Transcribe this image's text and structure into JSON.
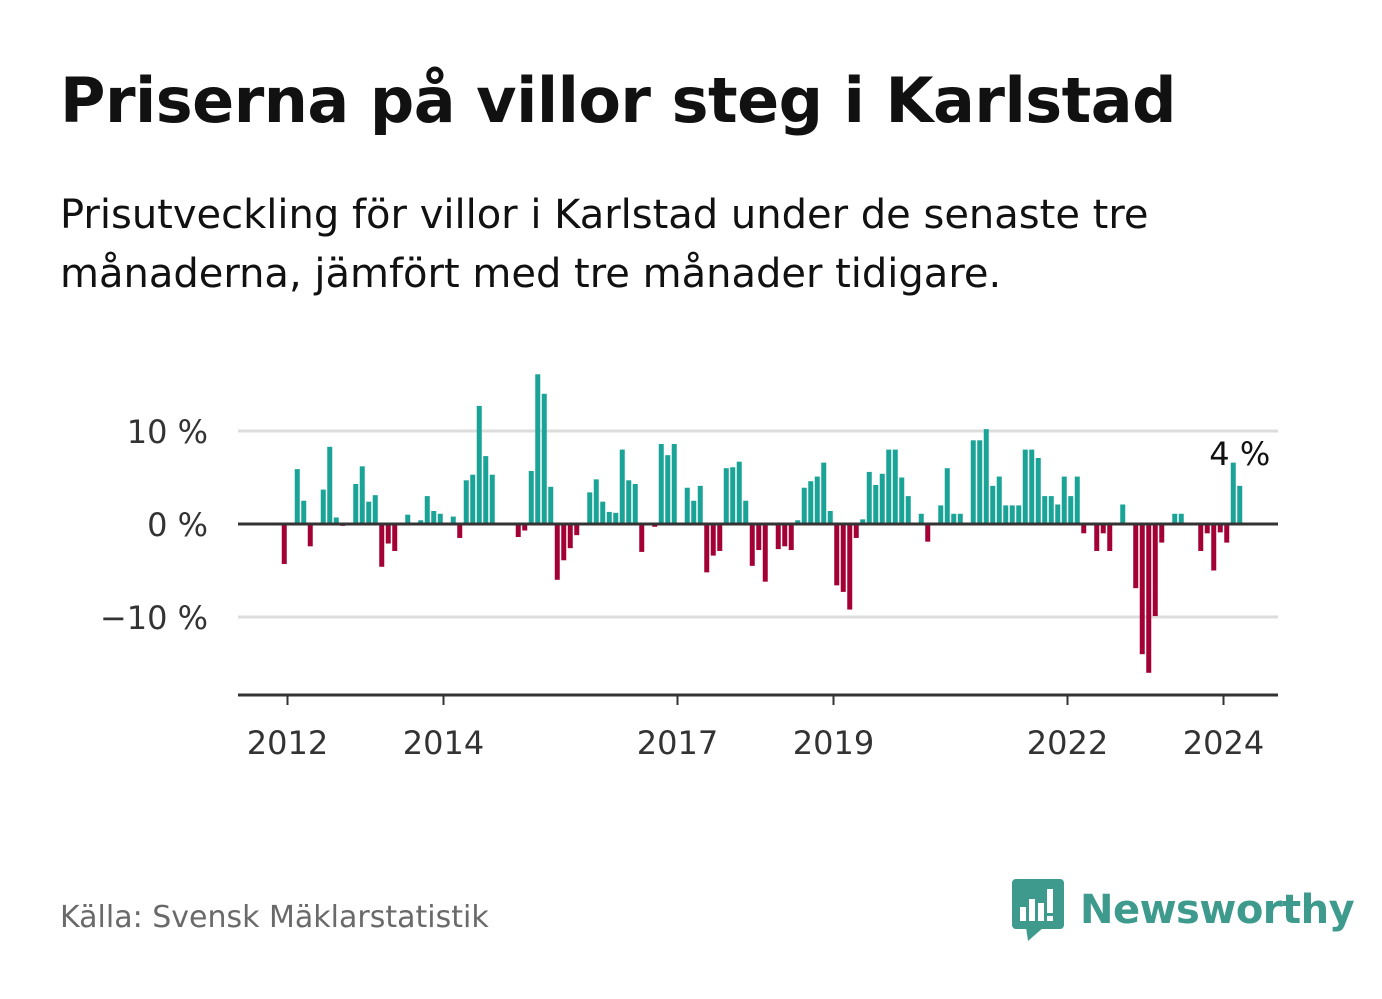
{
  "title": "Priserna på villor steg i Karlstad",
  "subtitle": "Prisutveckling för villor i Karlstad under de senaste tre månaderna, jämfört med tre månader tidigare.",
  "source": "Källa: Svensk Mäklarstatistik",
  "brand": "Newsworthy",
  "colors": {
    "positive": "#1aa397",
    "negative": "#a30036",
    "brand": "#3d9a8d",
    "grid": "#dddddd",
    "axis": "#333333"
  },
  "chart_data": {
    "type": "bar",
    "title": "Priserna på villor steg i Karlstad",
    "xlabel": "",
    "ylabel": "",
    "ylim": [
      -18.5,
      20
    ],
    "yticks": [
      {
        "value": 10,
        "label": "10 %"
      },
      {
        "value": 0,
        "label": "0 %"
      },
      {
        "value": -10,
        "label": "−10 %"
      }
    ],
    "xticks": [
      {
        "index": 12,
        "label": "2012"
      },
      {
        "index": 36,
        "label": "2014"
      },
      {
        "index": 72,
        "label": "2017"
      },
      {
        "index": 96,
        "label": "2019"
      },
      {
        "index": 132,
        "label": "2022"
      },
      {
        "index": 156,
        "label": "2024"
      }
    ],
    "first_month": "2011-01",
    "values": [
      0,
      0,
      0,
      0,
      0,
      0,
      0,
      0,
      0,
      0,
      0,
      -4.3,
      0,
      5.9,
      2.5,
      -2.4,
      0,
      3.7,
      8.3,
      0.7,
      -0.2,
      0,
      4.3,
      6.2,
      2.4,
      3.1,
      -4.6,
      -2.1,
      -2.9,
      0,
      1,
      0,
      0.4,
      3,
      1.4,
      1.1,
      0,
      0.8,
      -1.5,
      4.7,
      5.3,
      12.7,
      7.3,
      5.3,
      0,
      0,
      0,
      -1.4,
      -0.7,
      5.7,
      16.1,
      14,
      4,
      -6,
      -3.9,
      -2.6,
      -1.2,
      0,
      3.4,
      4.8,
      2.4,
      1.3,
      1.2,
      8,
      4.7,
      4.3,
      -3,
      0,
      -0.3,
      8.6,
      7.4,
      8.6,
      0,
      3.9,
      2.5,
      4.1,
      -5.2,
      -3.4,
      -2.9,
      6,
      6.1,
      6.7,
      2.5,
      -4.5,
      -2.8,
      -6.2,
      0,
      -2.7,
      -2.4,
      -2.8,
      0.4,
      3.9,
      4.6,
      5.1,
      6.6,
      1.4,
      -6.6,
      -7.3,
      -9.2,
      -1.5,
      0.5,
      5.6,
      4.2,
      5.4,
      8,
      8,
      5,
      3,
      0,
      1.1,
      -1.9,
      0,
      2,
      6,
      1.1,
      1.1,
      0,
      9,
      9,
      10.2,
      4.1,
      5.1,
      2,
      2,
      2,
      8,
      8,
      7.1,
      3,
      3,
      2.1,
      5.1,
      3,
      5.1,
      -1,
      0,
      -2.9,
      -1,
      -2.9,
      0,
      2.1,
      0,
      -6.9,
      -14,
      -16,
      -9.9,
      -2,
      0,
      1.1,
      1.1,
      0,
      0,
      -2.9,
      -1,
      -5,
      -0.9,
      -2,
      6.6,
      4.1
    ],
    "last_value_label": "4 %"
  }
}
